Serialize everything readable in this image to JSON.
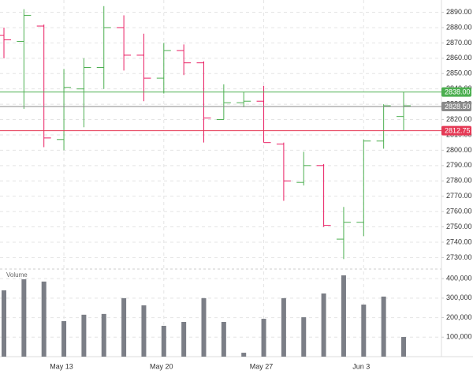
{
  "chart_data": {
    "type": "ohlc",
    "categories": [
      "",
      "",
      "",
      "May 13",
      "",
      "",
      "",
      "",
      "May 20",
      "",
      "",
      "",
      "",
      "May 27",
      "",
      "",
      "",
      "",
      "Jun 3",
      "",
      ""
    ],
    "open": [
      2875,
      2871,
      2881,
      2807,
      2840,
      2854,
      2880,
      2862,
      2847,
      2865,
      2857,
      2820,
      2831,
      2832,
      2804,
      2779,
      2790,
      2742,
      2753,
      2806,
      2822
    ],
    "high": [
      2880,
      2892,
      2882,
      2853,
      2860,
      2894,
      2888,
      2876,
      2870,
      2869,
      2858,
      2843,
      2838,
      2842,
      2805,
      2799,
      2791,
      2763,
      2807,
      2830,
      2838
    ],
    "low": [
      2860,
      2827,
      2802,
      2800,
      2815,
      2840,
      2852,
      2832,
      2837,
      2849,
      2805,
      2820,
      2828,
      2805,
      2767,
      2777,
      2750,
      2729,
      2744,
      2801,
      2813
    ],
    "close": [
      2872,
      2888,
      2808,
      2841,
      2854,
      2880,
      2862,
      2847,
      2865,
      2857,
      2821,
      2831,
      2832,
      2805,
      2780,
      2790,
      2751,
      2753,
      2806,
      2829,
      2829
    ],
    "up_color": "#4caf50",
    "down_color": "#e91e63",
    "ylim": [
      2723,
      2898
    ],
    "yticks": [
      {
        "value": 2730,
        "label": "2730.00"
      },
      {
        "value": 2740,
        "label": "2740.00"
      },
      {
        "value": 2750,
        "label": "2750.00"
      },
      {
        "value": 2760,
        "label": "2760.00"
      },
      {
        "value": 2770,
        "label": "2770.00"
      },
      {
        "value": 2780,
        "label": "2780.00"
      },
      {
        "value": 2790,
        "label": "2790.00"
      },
      {
        "value": 2800,
        "label": "2800.00"
      },
      {
        "value": 2810,
        "label": "2810.00"
      },
      {
        "value": 2820,
        "label": "2820.00"
      },
      {
        "value": 2830,
        "label": "2830.00"
      },
      {
        "value": 2840,
        "label": "2840.00"
      },
      {
        "value": 2850,
        "label": "2850.00"
      },
      {
        "value": 2860,
        "label": "2860.00"
      },
      {
        "value": 2870,
        "label": "2870.00"
      },
      {
        "value": 2880,
        "label": "2880.00"
      },
      {
        "value": 2890,
        "label": "2890.00"
      }
    ],
    "price_lines": [
      {
        "value": 2838,
        "label": "2838.00",
        "color": "#4caf50"
      },
      {
        "value": 2828.5,
        "label": "2828.50",
        "color": "#8a8a8a"
      },
      {
        "value": 2812.75,
        "label": "2812.75",
        "color": "#e53955"
      }
    ],
    "grid": true,
    "volume_title": "Volume",
    "volume": [
      340000,
      397000,
      385000,
      182000,
      215000,
      219000,
      300000,
      263000,
      158000,
      178000,
      300000,
      178000,
      20000,
      194000,
      300000,
      202000,
      324000,
      417000,
      267000,
      308000,
      101000
    ],
    "volume_color": "#7b7e86",
    "volume_ylim": [
      0,
      441000
    ],
    "volume_ticks": [
      {
        "value": 100000,
        "label": "100,000"
      },
      {
        "value": 200000,
        "label": "200,000"
      },
      {
        "value": 300000,
        "label": "300,000"
      },
      {
        "value": 400000,
        "label": "400,000"
      }
    ]
  }
}
